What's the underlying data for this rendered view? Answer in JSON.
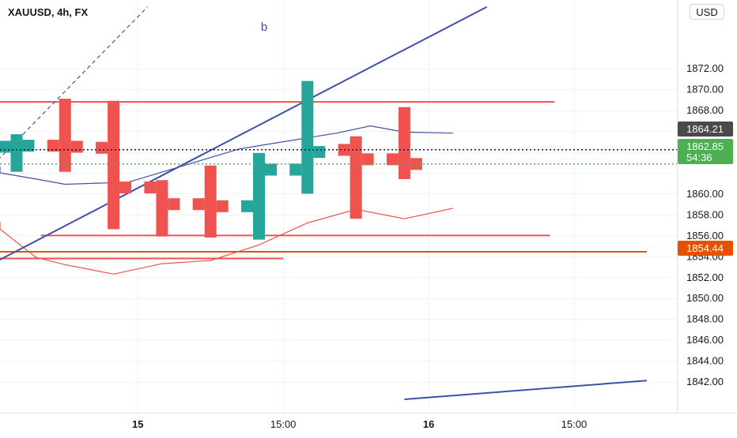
{
  "header": {
    "title": "XAUUSD, 4h, FX",
    "currency_button": "USD"
  },
  "colors": {
    "up": "#26a69a",
    "down": "#ef5350",
    "trend": "#3f51a5",
    "hline": "#f23645",
    "hline_orange": "#e65100",
    "current_dotted": "#4caf50",
    "last_dotted": "#131722",
    "tag_dark": "#4a4a4a",
    "tag_green": "#4caf50",
    "tag_orange": "#e65100"
  },
  "annotations": {
    "wave_label": "b"
  },
  "price_tags": {
    "last_close": "1864.21",
    "current_price": "1862.85",
    "countdown": "54:36",
    "level_orange": "1854.44"
  },
  "chart_data": {
    "type": "ohlc",
    "symbol": "XAUUSD",
    "interval": "4h",
    "exchange": "FX",
    "ylim": [
      1840.3,
      1877.5
    ],
    "y_ticks": [
      1842,
      1844,
      1846,
      1848,
      1850,
      1852,
      1854,
      1856,
      1858,
      1860,
      1862,
      1864,
      1866,
      1868,
      1870,
      1872
    ],
    "y_tick_labels": [
      "1842.00",
      "1844.00",
      "1846.00",
      "1848.00",
      "1850.00",
      "1852.00",
      "1854.00",
      "1856.00",
      "1858.00",
      "1860.00",
      "",
      "",
      "1866.00",
      "1868.00",
      "1870.00",
      "1872.00"
    ],
    "x_ticks": [
      {
        "label": "15",
        "bar": 2.5,
        "bold": true
      },
      {
        "label": "15:00",
        "bar": 5.5,
        "bold": false
      },
      {
        "label": "16",
        "bar": 8.5,
        "bold": true
      },
      {
        "label": "15:00",
        "bar": 11.5,
        "bold": false
      }
    ],
    "bars": [
      {
        "open": 1864.5,
        "high": 1865.7,
        "low": 1862.1,
        "close": 1864.6
      },
      {
        "open": 1864.6,
        "high": 1869.1,
        "low": 1862.1,
        "close": 1864.5
      },
      {
        "open": 1864.4,
        "high": 1868.9,
        "low": 1856.6,
        "close": 1860.6
      },
      {
        "open": 1860.6,
        "high": 1861.3,
        "low": 1855.9,
        "close": 1859.0
      },
      {
        "open": 1859.0,
        "high": 1862.7,
        "low": 1855.8,
        "close": 1858.8
      },
      {
        "open": 1858.8,
        "high": 1863.9,
        "low": 1855.6,
        "close": 1862.3
      },
      {
        "open": 1862.3,
        "high": 1870.8,
        "low": 1860.0,
        "close": 1864.0
      },
      {
        "open": 1864.2,
        "high": 1865.5,
        "low": 1857.6,
        "close": 1863.3
      },
      {
        "open": 1863.3,
        "high": 1868.3,
        "low": 1861.4,
        "close": 1862.85
      }
    ],
    "horizontal_levels": [
      {
        "price": 1868.8,
        "from_bar": -1.0,
        "to_bar": 11.1,
        "color": "down"
      },
      {
        "price": 1856.0,
        "from_bar": 0.5,
        "to_bar": 11.0,
        "color": "down"
      },
      {
        "price": 1853.8,
        "from_bar": -1.0,
        "to_bar": 5.5,
        "color": "down"
      },
      {
        "price": 1854.44,
        "from_bar": -1.0,
        "to_bar": 13.0,
        "color": "hline_orange"
      }
    ],
    "trend_lines": [
      {
        "points": [
          [
            -1.0,
            1852.1
          ],
          [
            9.7,
            1877.9
          ]
        ],
        "style": "solid",
        "color": "trend"
      },
      {
        "points": [
          [
            -1.0,
            1860.3
          ],
          [
            2.7,
            1877.9
          ]
        ],
        "style": "dashed",
        "color": "trend"
      },
      {
        "points": [
          [
            8.0,
            1840.3
          ],
          [
            13.0,
            1842.1
          ]
        ],
        "style": "solid",
        "color": "trend"
      }
    ],
    "ma_line_blue": [
      [
        -1.0,
        1862.6
      ],
      [
        -0.6,
        1862.0
      ],
      [
        0.4,
        1861.4
      ],
      [
        1.0,
        1860.9
      ],
      [
        2.3,
        1861.1
      ],
      [
        4.6,
        1864.3
      ],
      [
        6.6,
        1865.8
      ],
      [
        7.3,
        1866.5
      ],
      [
        8.0,
        1865.9
      ],
      [
        9.0,
        1865.8
      ]
    ],
    "ma_line_red": [
      [
        -1.0,
        1857.3
      ],
      [
        -0.6,
        1856.6
      ],
      [
        0.4,
        1853.9
      ],
      [
        1.0,
        1853.2
      ],
      [
        2.0,
        1852.3
      ],
      [
        3.0,
        1853.3
      ],
      [
        4.0,
        1853.6
      ],
      [
        5.0,
        1855.1
      ],
      [
        6.0,
        1857.2
      ],
      [
        7.0,
        1858.5
      ],
      [
        8.0,
        1857.6
      ],
      [
        9.0,
        1858.6
      ]
    ],
    "last_close_price": 1864.21,
    "current_price": 1862.85
  }
}
